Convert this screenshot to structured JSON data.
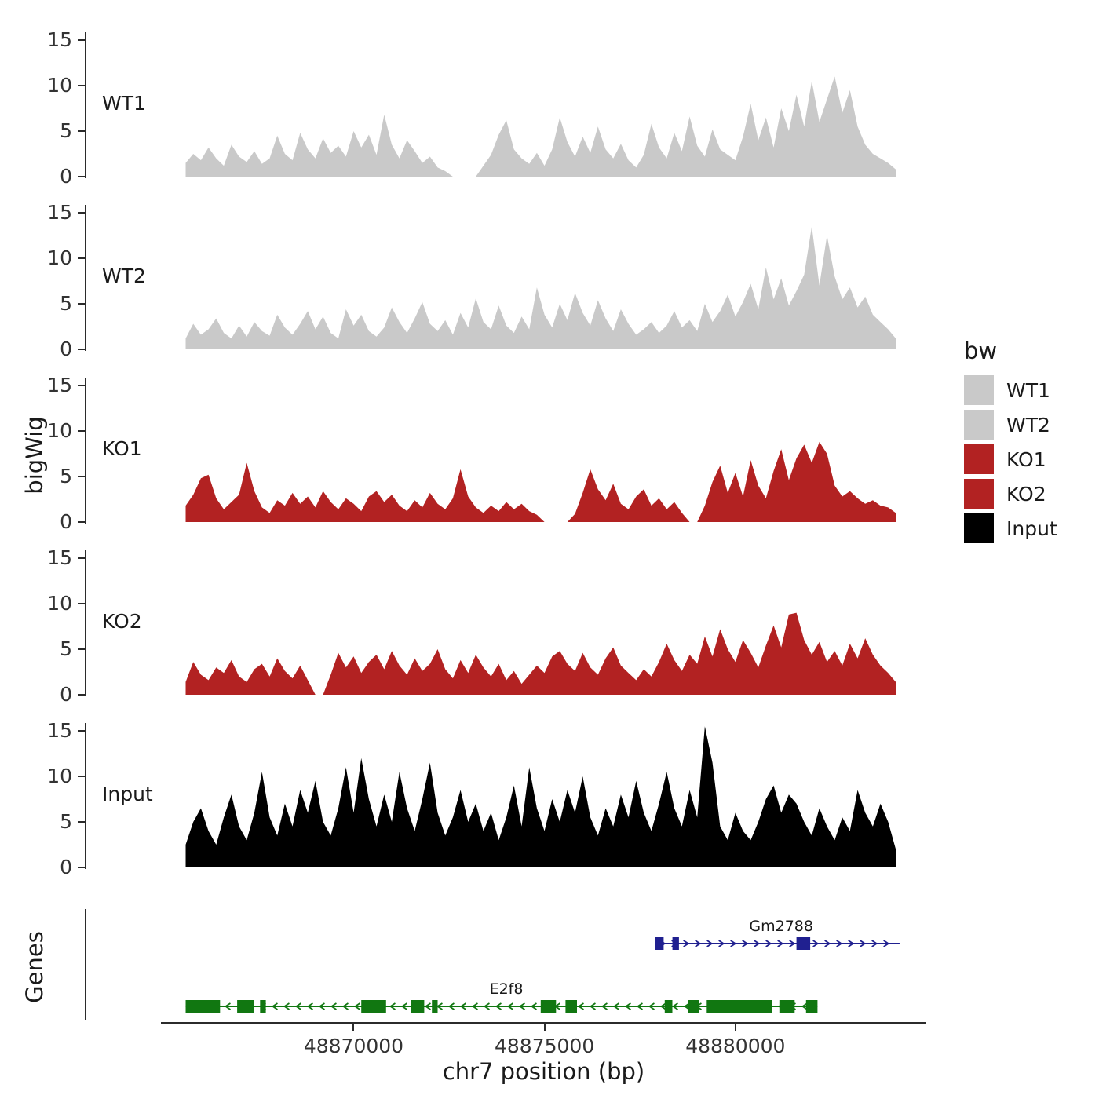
{
  "figure": {
    "y_axis_label": "bigWig",
    "genes_axis_label": "Genes",
    "x_axis_label": "chr7 position (bp)"
  },
  "legend": {
    "title": "bw",
    "entries": [
      {
        "label": "WT1",
        "color": "#c9c9c9"
      },
      {
        "label": "WT2",
        "color": "#c9c9c9"
      },
      {
        "label": "KO1",
        "color": "#b22222"
      },
      {
        "label": "KO2",
        "color": "#b22222"
      },
      {
        "label": "Input",
        "color": "#000000"
      }
    ]
  },
  "chart_data": {
    "type": "area",
    "title": "",
    "xlabel": "chr7 position (bp)",
    "ylabel": "bigWig",
    "x_domain": [
      48863000,
      48885000
    ],
    "x_ticks": [
      48870000,
      48875000,
      48880000
    ],
    "y_ticks": [
      0,
      5,
      10,
      15
    ],
    "ylim": [
      0,
      16.5
    ],
    "grid": false,
    "legend_position": "right",
    "data_start_bp": 48865600,
    "data_end_bp": 48884200,
    "tracks": [
      {
        "name": "WT1",
        "color": "#c9c9c9",
        "values": [
          1.5,
          2.5,
          1.8,
          3.2,
          2.0,
          1.2,
          3.5,
          2.2,
          1.6,
          2.8,
          1.4,
          2.0,
          4.5,
          2.5,
          1.8,
          4.8,
          3.0,
          2.0,
          4.2,
          2.6,
          3.4,
          2.2,
          5.0,
          3.2,
          4.6,
          2.4,
          6.8,
          3.5,
          2.0,
          4.0,
          2.8,
          1.5,
          2.2,
          1.0,
          0.6,
          0,
          0,
          0,
          0,
          1.2,
          2.4,
          4.6,
          6.2,
          3.0,
          2.0,
          1.4,
          2.6,
          1.2,
          3.0,
          6.5,
          3.8,
          2.2,
          4.4,
          2.6,
          5.5,
          3.0,
          2.0,
          3.6,
          1.8,
          1.0,
          2.4,
          5.8,
          3.2,
          2.0,
          4.8,
          2.8,
          6.6,
          3.4,
          2.2,
          5.2,
          3.0,
          2.4,
          1.8,
          4.4,
          8.0,
          4.0,
          6.5,
          3.2,
          7.5,
          5.0,
          9.0,
          5.5,
          10.5,
          6.0,
          8.5,
          11.0,
          7.0,
          9.5,
          5.5,
          3.5,
          2.5,
          2.0,
          1.5,
          0.8
        ]
      },
      {
        "name": "WT2",
        "color": "#c9c9c9",
        "values": [
          1.2,
          2.8,
          1.6,
          2.2,
          3.4,
          1.8,
          1.2,
          2.6,
          1.4,
          3.0,
          2.0,
          1.5,
          3.8,
          2.4,
          1.6,
          2.8,
          4.2,
          2.2,
          3.6,
          1.8,
          1.2,
          4.4,
          2.6,
          3.8,
          2.0,
          1.4,
          2.4,
          4.6,
          3.0,
          1.8,
          3.4,
          5.2,
          2.8,
          2.0,
          3.2,
          1.6,
          4.0,
          2.4,
          5.6,
          3.0,
          2.2,
          4.8,
          2.6,
          1.8,
          3.6,
          2.2,
          6.8,
          3.8,
          2.4,
          5.0,
          3.2,
          6.2,
          4.0,
          2.6,
          5.4,
          3.4,
          2.0,
          4.4,
          2.8,
          1.6,
          2.2,
          3.0,
          1.8,
          2.6,
          4.2,
          2.4,
          3.2,
          2.0,
          5.0,
          3.0,
          4.2,
          6.0,
          3.6,
          5.2,
          7.2,
          4.4,
          9.0,
          5.5,
          7.8,
          4.8,
          6.4,
          8.2,
          13.5,
          7.0,
          12.5,
          8.0,
          5.5,
          6.8,
          4.6,
          5.8,
          3.8,
          3.0,
          2.2,
          1.2
        ]
      },
      {
        "name": "KO1",
        "color": "#b22222",
        "values": [
          1.8,
          3.0,
          4.8,
          5.2,
          2.6,
          1.4,
          2.2,
          3.0,
          6.5,
          3.4,
          1.6,
          1.0,
          2.4,
          1.8,
          3.2,
          2.0,
          2.8,
          1.6,
          3.4,
          2.2,
          1.4,
          2.6,
          2.0,
          1.2,
          2.8,
          3.4,
          2.2,
          3.0,
          1.8,
          1.2,
          2.4,
          1.6,
          3.2,
          2.0,
          1.4,
          2.6,
          5.8,
          2.8,
          1.6,
          1.0,
          1.8,
          1.2,
          2.2,
          1.4,
          2.0,
          1.2,
          0.8,
          0,
          0,
          0,
          0,
          0.9,
          3.2,
          5.8,
          3.6,
          2.4,
          4.2,
          2.0,
          1.4,
          2.8,
          3.6,
          1.8,
          2.6,
          1.4,
          2.2,
          1.0,
          0,
          0,
          1.8,
          4.4,
          6.2,
          3.2,
          5.4,
          2.8,
          6.8,
          4.0,
          2.6,
          5.6,
          8.0,
          4.6,
          7.0,
          8.5,
          6.5,
          8.8,
          7.5,
          4.0,
          2.8,
          3.4,
          2.6,
          2.0,
          2.4,
          1.8,
          1.6,
          1.0
        ]
      },
      {
        "name": "KO2",
        "color": "#b22222",
        "values": [
          1.4,
          3.6,
          2.2,
          1.6,
          3.0,
          2.4,
          3.8,
          2.0,
          1.4,
          2.8,
          3.4,
          2.0,
          4.0,
          2.6,
          1.8,
          3.2,
          1.6,
          0,
          0,
          2.2,
          4.6,
          3.0,
          4.2,
          2.4,
          3.6,
          4.4,
          2.8,
          4.8,
          3.2,
          2.2,
          4.0,
          2.6,
          3.4,
          5.0,
          2.8,
          1.8,
          3.8,
          2.4,
          4.4,
          3.0,
          2.0,
          3.4,
          1.6,
          2.6,
          1.2,
          2.2,
          3.2,
          2.4,
          4.2,
          4.8,
          3.4,
          2.6,
          4.6,
          3.0,
          2.2,
          4.0,
          5.2,
          3.2,
          2.4,
          1.6,
          2.8,
          2.0,
          3.6,
          5.6,
          3.8,
          2.6,
          4.4,
          3.4,
          6.4,
          4.2,
          7.2,
          5.0,
          3.6,
          6.0,
          4.6,
          3.0,
          5.4,
          7.6,
          5.2,
          8.8,
          9.0,
          6.0,
          4.4,
          5.8,
          3.6,
          4.8,
          3.2,
          5.6,
          4.0,
          6.2,
          4.4,
          3.2,
          2.4,
          1.4
        ]
      },
      {
        "name": "Input",
        "color": "#000000",
        "values": [
          2.5,
          5.0,
          6.5,
          4.0,
          2.5,
          5.5,
          8.0,
          4.5,
          3.0,
          6.0,
          10.5,
          5.5,
          3.5,
          7.0,
          4.5,
          8.5,
          6.0,
          9.5,
          5.0,
          3.5,
          6.5,
          11.0,
          6.0,
          12.0,
          7.5,
          4.5,
          8.0,
          5.0,
          10.5,
          6.5,
          4.0,
          7.5,
          11.5,
          6.0,
          3.5,
          5.5,
          8.5,
          5.0,
          7.0,
          4.0,
          6.0,
          3.0,
          5.5,
          9.0,
          4.5,
          11.0,
          6.5,
          4.0,
          7.5,
          5.0,
          8.5,
          6.0,
          10.0,
          5.5,
          3.5,
          6.5,
          4.5,
          8.0,
          5.5,
          9.5,
          6.0,
          4.0,
          7.0,
          10.5,
          6.5,
          4.5,
          8.5,
          5.5,
          15.5,
          11.5,
          4.5,
          3.0,
          6.0,
          4.0,
          3.0,
          5.0,
          7.5,
          9.0,
          6.0,
          8.0,
          7.0,
          5.0,
          3.5,
          6.5,
          4.5,
          3.0,
          5.5,
          4.0,
          8.5,
          6.0,
          4.5,
          7.0,
          5.0,
          2.0
        ]
      }
    ],
    "genes": [
      {
        "name": "Gm2788",
        "strand": "+",
        "color": "#202090",
        "start": 48877900,
        "end": 48884300,
        "label_bp": 48881200,
        "exons": [
          [
            48877900,
            48878120
          ],
          [
            48878350,
            48878520
          ],
          [
            48881600,
            48881960
          ]
        ]
      },
      {
        "name": "E2f8",
        "strand": "-",
        "color": "#117711",
        "start": 48865600,
        "end": 48882150,
        "label_bp": 48874000,
        "exons": [
          [
            48865600,
            48866500
          ],
          [
            48866950,
            48867400
          ],
          [
            48867550,
            48867700
          ],
          [
            48870200,
            48870850
          ],
          [
            48871500,
            48871850
          ],
          [
            48872050,
            48872200
          ],
          [
            48874900,
            48875300
          ],
          [
            48875550,
            48875850
          ],
          [
            48878150,
            48878350
          ],
          [
            48878750,
            48879050
          ],
          [
            48879250,
            48880950
          ],
          [
            48881150,
            48881550
          ],
          [
            48881850,
            48882150
          ]
        ]
      }
    ]
  }
}
